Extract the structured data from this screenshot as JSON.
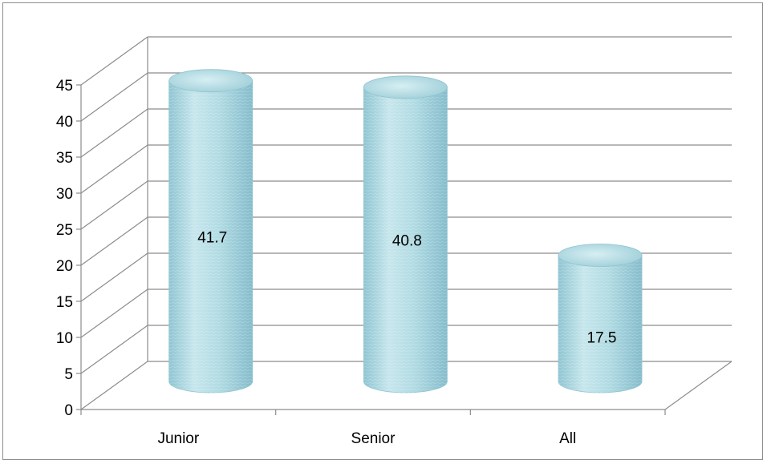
{
  "chart_data": {
    "type": "bar",
    "categories": [
      "Junior",
      "Senior",
      "All"
    ],
    "values": [
      41.7,
      40.8,
      17.5
    ],
    "data_labels": [
      "41.7",
      "40.8",
      "17.5"
    ],
    "title": "",
    "xlabel": "",
    "ylabel": "",
    "ylim": [
      0,
      45
    ],
    "yticks": [
      0,
      5,
      10,
      15,
      20,
      25,
      30,
      35,
      40,
      45
    ],
    "ytick_labels": [
      "0",
      "5",
      "10",
      "15",
      "20",
      "25",
      "30",
      "35",
      "40",
      "45"
    ],
    "grid": true,
    "legend": "none",
    "style": "3d-cylinder",
    "colors": {
      "bar_fill": "#a6d3dc",
      "bar_edge": "#8fc3cf",
      "gridline": "#8c8c8c",
      "axis": "#8c8c8c"
    }
  }
}
